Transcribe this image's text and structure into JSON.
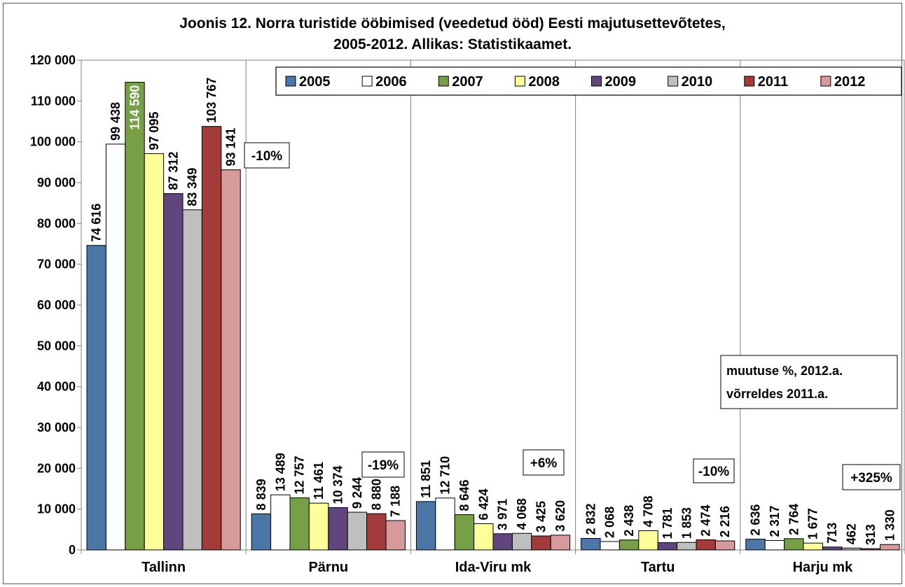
{
  "chart_data": {
    "type": "bar",
    "title_line1": "Joonis 12. Norra turistide ööbimised (veedetud ööd) Eesti majutusettevõtetes,",
    "title_line2": "2005-2012. Allikas: Statistikaamet.",
    "categories": [
      "Tallinn",
      "Pärnu",
      "Ida-Viru mk",
      "Tartu",
      "Harju mk"
    ],
    "ylim": [
      0,
      120000
    ],
    "yticks": [
      0,
      10000,
      20000,
      30000,
      40000,
      50000,
      60000,
      70000,
      80000,
      90000,
      100000,
      110000,
      120000
    ],
    "ytick_labels": [
      "0",
      "10 000",
      "20 000",
      "30 000",
      "40 000",
      "50 000",
      "60 000",
      "70 000",
      "80 000",
      "90 000",
      "100 000",
      "110 000",
      "120 000"
    ],
    "grid": "vertical-category-separators",
    "legend_position": "top-right",
    "series": [
      {
        "name": "2005",
        "color": "#4a76a8",
        "values": [
          74616,
          8839,
          11851,
          2832,
          2636
        ],
        "labels": [
          "74 616",
          "8 839",
          "11 851",
          "2 832",
          "2 636"
        ]
      },
      {
        "name": "2006",
        "color": "#ffffff",
        "values": [
          99438,
          13489,
          12710,
          2068,
          2317
        ],
        "labels": [
          "99 438",
          "13 489",
          "12 710",
          "2 068",
          "2 317"
        ]
      },
      {
        "name": "2007",
        "color": "#77a046",
        "values": [
          114590,
          12757,
          8646,
          2438,
          2764
        ],
        "labels": [
          "114 590",
          "12 757",
          "8 646",
          "2 438",
          "2 764"
        ]
      },
      {
        "name": "2008",
        "color": "#ffff99",
        "values": [
          97095,
          11461,
          6424,
          4708,
          1677
        ],
        "labels": [
          "97 095",
          "11 461",
          "6 424",
          "4 708",
          "1 677"
        ]
      },
      {
        "name": "2009",
        "color": "#61457e",
        "values": [
          87312,
          10374,
          3971,
          1781,
          713
        ],
        "labels": [
          "87 312",
          "10 374",
          "3 971",
          "1 781",
          "713"
        ]
      },
      {
        "name": "2010",
        "color": "#bfbfbf",
        "values": [
          83349,
          9244,
          4068,
          1853,
          462
        ],
        "labels": [
          "83 349",
          "9 244",
          "4 068",
          "1 853",
          "462"
        ]
      },
      {
        "name": "2011",
        "color": "#a33b3a",
        "values": [
          103767,
          8880,
          3425,
          2474,
          313
        ],
        "labels": [
          "103 767",
          "8 880",
          "3 425",
          "2 474",
          "313"
        ]
      },
      {
        "name": "2012",
        "color": "#d69a9a",
        "values": [
          93141,
          7188,
          3620,
          2216,
          1330
        ],
        "labels": [
          "93 141",
          "7 188",
          "3 620",
          "2 216",
          "1 330"
        ]
      }
    ],
    "change_labels": [
      "-10%",
      "-19%",
      "+6%",
      "-10%",
      "+325%"
    ],
    "note_line1": "muutuse %, 2012.a.",
    "note_line2": "võrreldes 2011.a."
  }
}
